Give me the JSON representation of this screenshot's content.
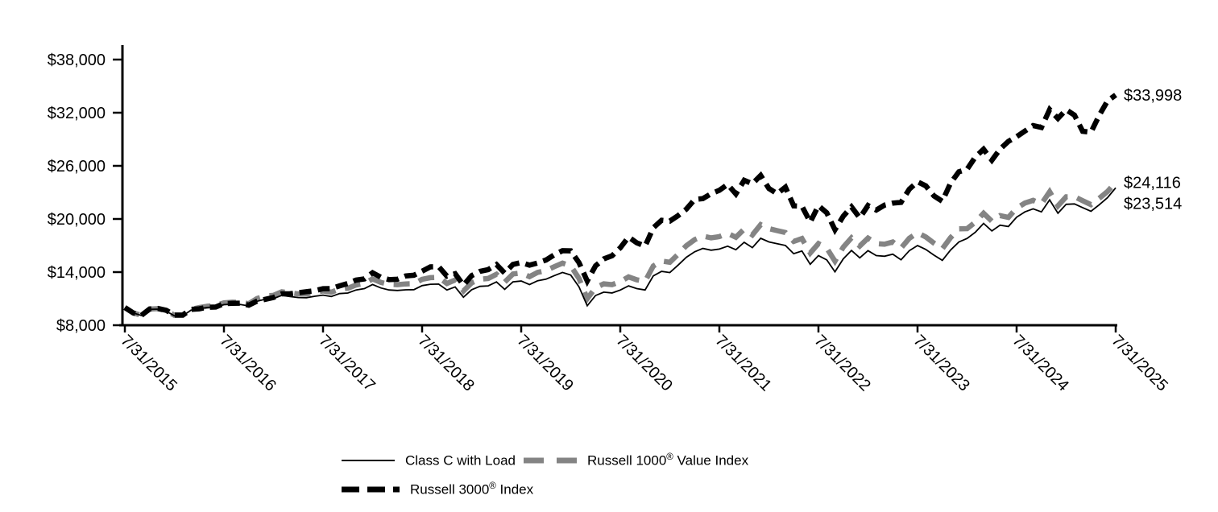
{
  "chart_data": {
    "type": "line",
    "title": "",
    "xlabel": "",
    "ylabel": "",
    "x_tick_labels": [
      "7/31/2015",
      "7/31/2016",
      "7/31/2017",
      "7/31/2018",
      "7/31/2019",
      "7/31/2020",
      "7/31/2021",
      "7/31/2022",
      "7/31/2023",
      "7/31/2024",
      "7/31/2025"
    ],
    "y_tick_labels": [
      "$8,000",
      "$14,000",
      "$20,000",
      "$26,000",
      "$32,000",
      "$38,000"
    ],
    "y_tick_values": [
      8000,
      14000,
      20000,
      26000,
      32000,
      38000
    ],
    "ylim": [
      8000,
      38000
    ],
    "grid": false,
    "legend_position": "bottom",
    "months_per_x_tick": 12,
    "draw_order": [
      1,
      2,
      0
    ],
    "series": [
      {
        "name": "Class C with Load",
        "color": "#000000",
        "style": "solid",
        "stroke_width": 1.8,
        "dash": "",
        "end_label": "$23,514",
        "end_value": 23514,
        "values": [
          10000,
          9390,
          9100,
          9790,
          9820,
          9590,
          9060,
          9050,
          9690,
          9870,
          10010,
          10060,
          10330,
          10380,
          10340,
          10170,
          10700,
          10950,
          11010,
          11370,
          11250,
          11130,
          11110,
          11270,
          11400,
          11250,
          11570,
          11640,
          11980,
          12140,
          12600,
          12210,
          11980,
          11930,
          12000,
          12020,
          12470,
          12630,
          12650,
          11980,
          12330,
          11160,
          12010,
          12390,
          12450,
          12890,
          12050,
          12900,
          12990,
          12590,
          13030,
          13200,
          13600,
          13960,
          13660,
          12330,
          10200,
          11350,
          11740,
          11650,
          11970,
          12450,
          12140,
          11980,
          13570,
          14080,
          13950,
          14790,
          15670,
          16290,
          16670,
          16470,
          16600,
          16930,
          16530,
          17360,
          16760,
          17820,
          17410,
          17200,
          17010,
          16080,
          16380,
          14880,
          15860,
          15380,
          14040,
          15490,
          16450,
          15610,
          16430,
          15860,
          15790,
          16030,
          15390,
          16420,
          17000,
          16550,
          15910,
          15330,
          16490,
          17400,
          17800,
          18500,
          19500,
          18650,
          19300,
          19150,
          20200,
          20800,
          21150,
          20800,
          22150,
          20650,
          21650,
          21700,
          21280,
          20870,
          21600,
          22400,
          23514
        ]
      },
      {
        "name": "Russell 1000 Value Index",
        "color": "#848484",
        "style": "dashed",
        "stroke_width": 6.5,
        "dash": "20 12",
        "end_label": "$24,116",
        "end_value": 24116,
        "values": [
          10000,
          9400,
          9120,
          9830,
          9870,
          9650,
          9130,
          9130,
          9790,
          9990,
          10150,
          10230,
          10530,
          10600,
          10580,
          10430,
          11010,
          11290,
          11370,
          11770,
          11660,
          11540,
          11540,
          11720,
          11875,
          11735,
          12085,
          12170,
          12545,
          12730,
          13230,
          12840,
          12615,
          12580,
          12660,
          12690,
          13185,
          13370,
          13410,
          12715,
          13105,
          11870,
          12790,
          13195,
          13280,
          13755,
          12870,
          13790,
          13900,
          13490,
          13975,
          14170,
          14610,
          15010,
          14700,
          13280,
          11000,
          12250,
          12670,
          12580,
          12930,
          13460,
          13130,
          12960,
          14690,
          15250,
          15110,
          16020,
          16980,
          17660,
          18070,
          17860,
          18010,
          18370,
          17940,
          18850,
          18200,
          19350,
          18905,
          18680,
          18475,
          17460,
          17790,
          16155,
          17215,
          16700,
          15240,
          16815,
          17860,
          16950,
          17840,
          17215,
          17145,
          17400,
          16705,
          17820,
          18450,
          17960,
          17265,
          16640,
          17895,
          18880,
          18905,
          19645,
          20645,
          19745,
          20380,
          20180,
          21220,
          21800,
          22100,
          21700,
          23075,
          21480,
          22500,
          22520,
          22060,
          21620,
          22330,
          23100,
          24116
        ]
      },
      {
        "name": "Russell 3000 Index",
        "color": "#000000",
        "style": "dashed",
        "stroke_width": 6.5,
        "dash": "15 8",
        "end_label": "$33,998",
        "end_value": 33998,
        "values": [
          10000,
          9395,
          9120,
          9840,
          9895,
          9690,
          9150,
          9145,
          9790,
          9850,
          10030,
          10050,
          10450,
          10475,
          10490,
          10265,
          10720,
          10930,
          11135,
          11545,
          11555,
          11675,
          11790,
          11900,
          12125,
          12150,
          12445,
          12715,
          13100,
          13230,
          13930,
          13415,
          13145,
          13190,
          13560,
          13645,
          14100,
          14595,
          14620,
          13545,
          13815,
          12525,
          13600,
          14080,
          14285,
          14850,
          13890,
          14865,
          15085,
          14780,
          15040,
          15365,
          15955,
          16415,
          16400,
          15060,
          12990,
          14705,
          15490,
          15845,
          16745,
          17960,
          17310,
          16935,
          19000,
          19855,
          19765,
          20380,
          21110,
          22200,
          22300,
          22855,
          23240,
          23900,
          22825,
          24360,
          23970,
          24915,
          23445,
          22855,
          23595,
          21480,
          21450,
          19650,
          21500,
          20700,
          18780,
          20310,
          21360,
          20130,
          21520,
          21010,
          21565,
          21795,
          21875,
          23365,
          24200,
          23735,
          22600,
          22000,
          24050,
          25330,
          25610,
          27000,
          27870,
          26640,
          27890,
          28760,
          29290,
          29925,
          30545,
          30325,
          32350,
          31350,
          32340,
          31730,
          29900,
          29790,
          31690,
          33330,
          33998
        ]
      }
    ]
  },
  "legend": {
    "items": [
      {
        "pre": "Class C with Load",
        "sup": "",
        "post": ""
      },
      {
        "pre": "Russell 1000",
        "sup": "®",
        "post": " Value Index"
      },
      {
        "pre": "Russell 3000",
        "sup": "®",
        "post": " Index"
      }
    ]
  }
}
